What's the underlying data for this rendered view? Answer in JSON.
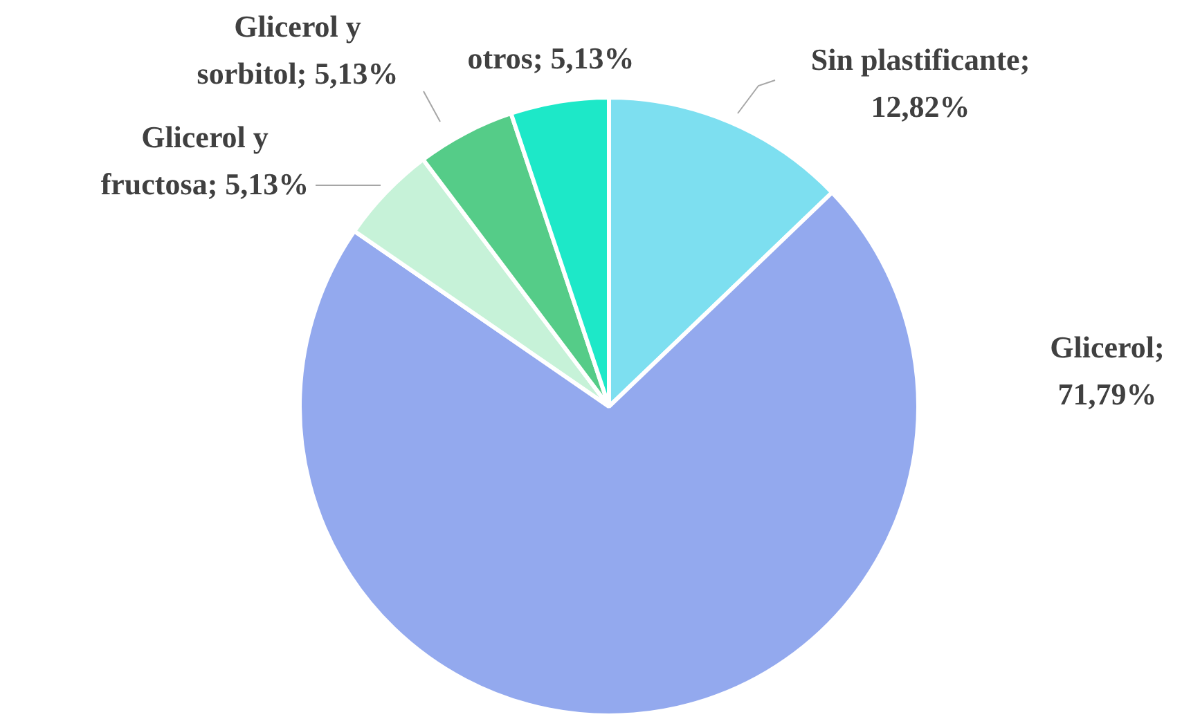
{
  "chart_data": {
    "type": "pie",
    "categories": [
      "Sin plastificante",
      "Glicerol",
      "Glicerol y fructosa",
      "Glicerol y sorbitol",
      "otros"
    ],
    "values": [
      12.82,
      71.79,
      5.13,
      5.13,
      5.13
    ],
    "colors": [
      "#7ddff0",
      "#93a9ee",
      "#c6f2d8",
      "#55cc88",
      "#1de8c8"
    ],
    "value_labels": [
      "; 12,82%",
      "; 71,79%",
      "; 5,13%",
      "; 5,13%",
      "; 5,13%"
    ],
    "legend": false
  }
}
